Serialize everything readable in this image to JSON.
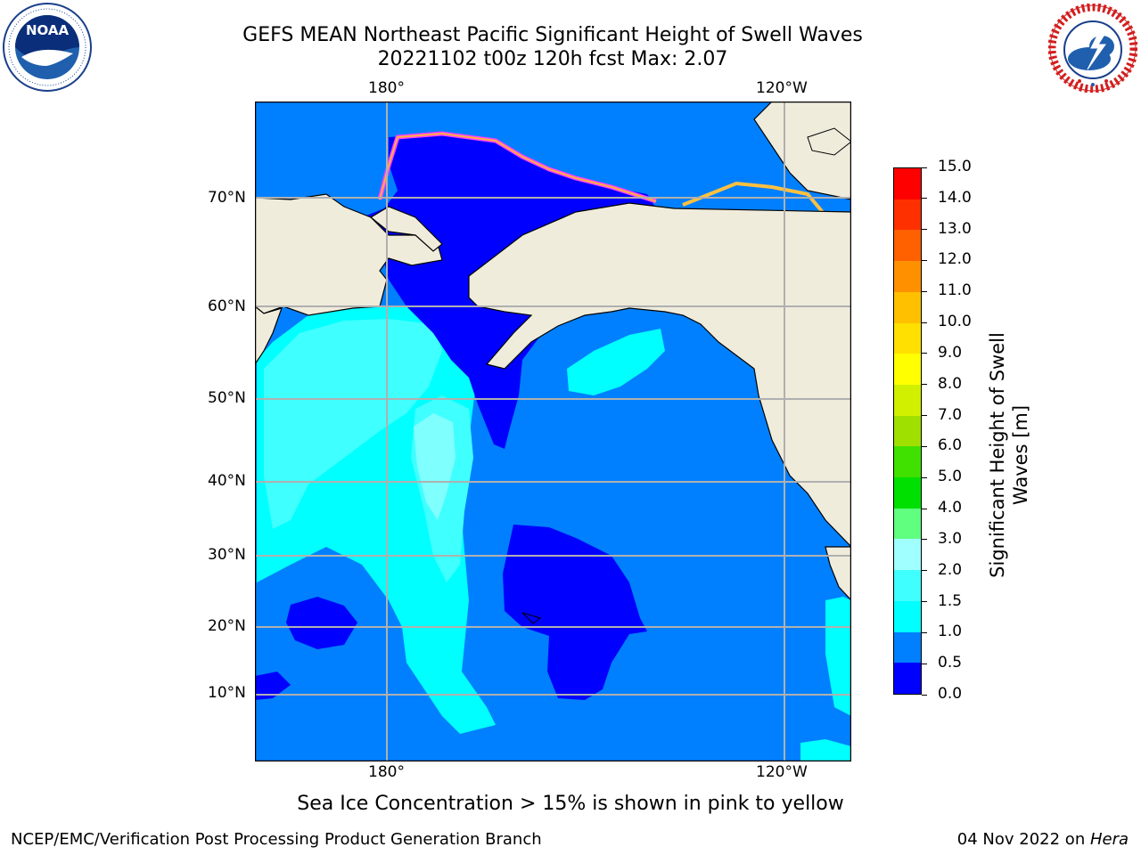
{
  "title": {
    "line1": "GEFS MEAN Northeast Pacific Significant Height of Swell Waves",
    "line2": "20221102 t00z 120h fcst   Max: 2.07"
  },
  "logos": {
    "noaa_text": "NOAA",
    "noaa_ring": "NATIONAL OCEANIC AND ATMOSPHERIC ADMINISTRATION · U.S. DEPARTMENT OF COMMERCE",
    "nws_ring": "NATIONAL WEATHER SERVICE"
  },
  "map": {
    "lon_labels": [
      "180°",
      "120°W"
    ],
    "lat_labels": [
      "70°N",
      "60°N",
      "50°N",
      "40°N",
      "30°N",
      "20°N",
      "10°N"
    ],
    "colors": {
      "land": "#efecdc",
      "band_0_05": "#0000ff",
      "band_05_10": "#0080ff",
      "band_10_15": "#00ffff",
      "band_15_20": "#40ffff",
      "band_20_25": "#80ffff",
      "ice": "#ff40ff",
      "grid": "#b0b0b0"
    }
  },
  "colorbar": {
    "title_line1": "Significant Height of Swell",
    "title_line2": "Waves [m]",
    "ticks": [
      "0.0",
      "0.5",
      "1.0",
      "1.5",
      "2.0",
      "3.0",
      "4.0",
      "5.0",
      "6.0",
      "7.0",
      "8.0",
      "9.0",
      "10.0",
      "11.0",
      "12.0",
      "13.0",
      "14.0",
      "15.0"
    ],
    "colors": [
      "#0000ff",
      "#0080ff",
      "#00ffff",
      "#40ffff",
      "#a0ffff",
      "#60ff80",
      "#00e000",
      "#40e000",
      "#a0e000",
      "#d0f000",
      "#ffff00",
      "#ffe000",
      "#ffc000",
      "#ff9000",
      "#ff6000",
      "#ff3000",
      "#ff0000"
    ]
  },
  "note": "Sea Ice Concentration > 15% is shown in pink to yellow",
  "footer": {
    "left": "NCEP/EMC/Verification Post Processing Product Generation Branch",
    "right_prefix": "04 Nov 2022 on ",
    "right_host": "Hera"
  }
}
